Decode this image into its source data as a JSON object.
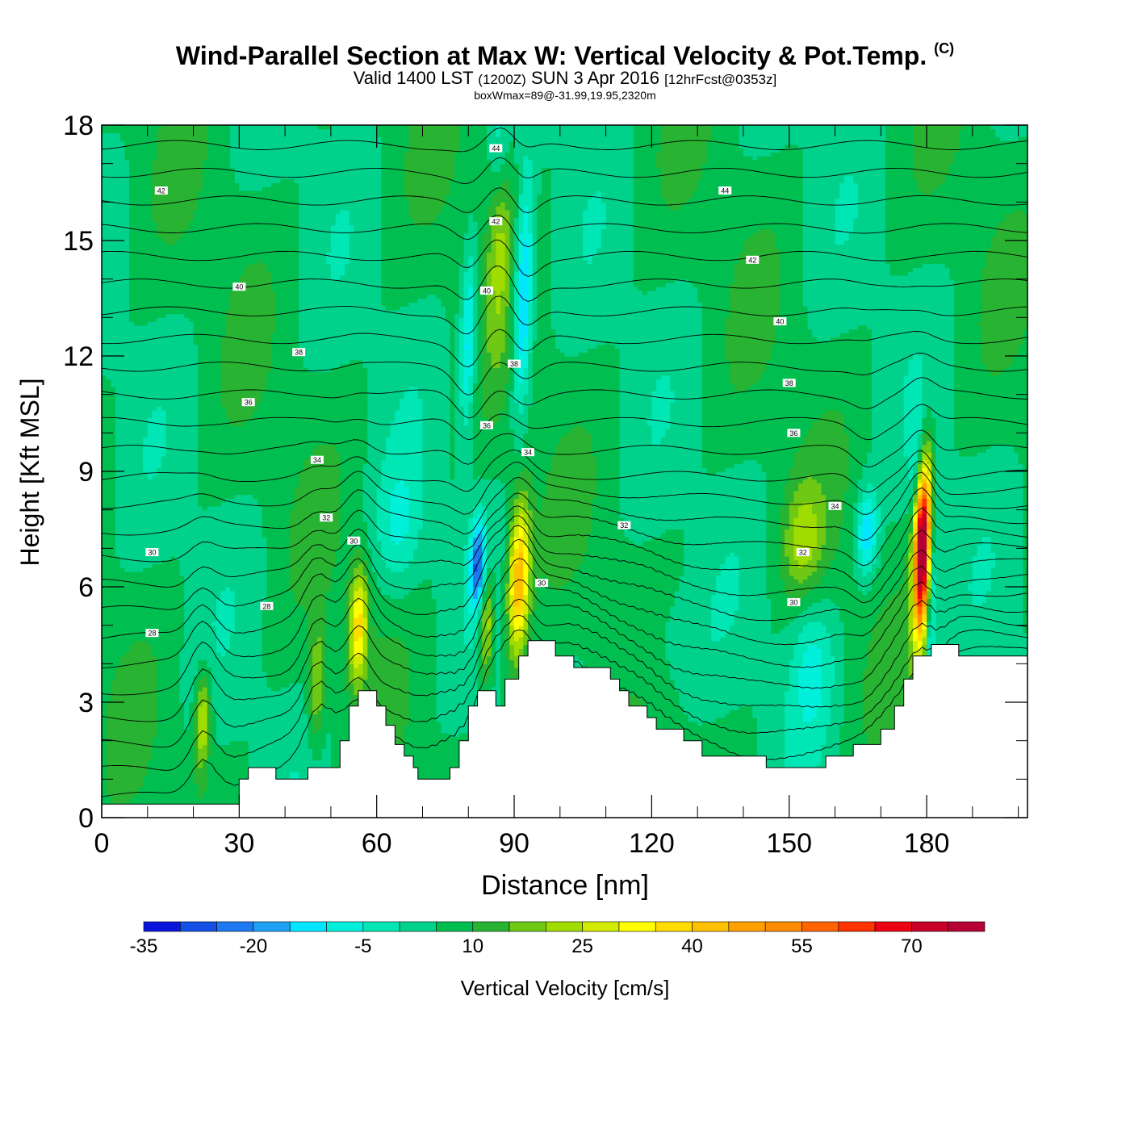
{
  "header": {
    "title": "Wind-Parallel Section at Max W: Vertical Velocity & Pot.Temp.",
    "title_mark": "(C)",
    "subtitle_valid": "Valid 1400 LST",
    "subtitle_z": "(1200Z)",
    "subtitle_date": "SUN 3 Apr 2016",
    "subtitle_fcst": "[12hrFcst@0353z]",
    "note": "boxWmax=89@-31.99,19.95,2320m"
  },
  "chart_data": {
    "type": "heatmap",
    "xlabel": "Distance [nm]",
    "ylabel": "Height [Kft MSL]",
    "xlim": [
      0,
      202
    ],
    "ylim": [
      0,
      18
    ],
    "x_ticks": [
      0,
      30,
      60,
      90,
      120,
      150,
      180
    ],
    "y_ticks": [
      0,
      3,
      6,
      9,
      12,
      15,
      18
    ],
    "colorbar": {
      "label": "Vertical Velocity [cm/s]",
      "min": -35,
      "max": 80,
      "step": 5,
      "tick_labels": [
        -35,
        -20,
        -5,
        10,
        25,
        40,
        55,
        70
      ],
      "colors": [
        "#0a14dc",
        "#1450e6",
        "#1e78f0",
        "#1ea0f5",
        "#00e6ff",
        "#00f0dc",
        "#00e6b4",
        "#00d28c",
        "#00be50",
        "#28b432",
        "#6ec814",
        "#a0dc00",
        "#d2eb00",
        "#ffff00",
        "#ffdc00",
        "#ffc000",
        "#ffa000",
        "#ff8c00",
        "#ff6400",
        "#ff3200",
        "#eb0014",
        "#c80028",
        "#b40032"
      ]
    },
    "terrain": [
      [
        0,
        0.35
      ],
      [
        30,
        0.35
      ],
      [
        30,
        1.0
      ],
      [
        32,
        1.0
      ],
      [
        32,
        1.3
      ],
      [
        38,
        1.3
      ],
      [
        38,
        1.0
      ],
      [
        45,
        1.0
      ],
      [
        45,
        1.3
      ],
      [
        52,
        1.3
      ],
      [
        52,
        2.0
      ],
      [
        54,
        2.0
      ],
      [
        54,
        2.9
      ],
      [
        56,
        2.9
      ],
      [
        56,
        3.3
      ],
      [
        60,
        3.3
      ],
      [
        60,
        2.9
      ],
      [
        62,
        2.9
      ],
      [
        62,
        2.4
      ],
      [
        64,
        2.4
      ],
      [
        64,
        1.9
      ],
      [
        66,
        1.9
      ],
      [
        66,
        1.6
      ],
      [
        68,
        1.6
      ],
      [
        68,
        1.3
      ],
      [
        69,
        1.3
      ],
      [
        69,
        1.0
      ],
      [
        76,
        1.0
      ],
      [
        76,
        1.3
      ],
      [
        78,
        1.3
      ],
      [
        78,
        2.0
      ],
      [
        80,
        2.0
      ],
      [
        80,
        2.9
      ],
      [
        82,
        2.9
      ],
      [
        82,
        3.3
      ],
      [
        86,
        3.3
      ],
      [
        86,
        2.9
      ],
      [
        88,
        2.9
      ],
      [
        88,
        3.6
      ],
      [
        91,
        3.6
      ],
      [
        91,
        4.2
      ],
      [
        93,
        4.2
      ],
      [
        93,
        4.6
      ],
      [
        99,
        4.6
      ],
      [
        99,
        4.2
      ],
      [
        103,
        4.2
      ],
      [
        103,
        3.9
      ],
      [
        111,
        3.9
      ],
      [
        111,
        3.6
      ],
      [
        113,
        3.6
      ],
      [
        113,
        3.3
      ],
      [
        115,
        3.3
      ],
      [
        115,
        2.9
      ],
      [
        119,
        2.9
      ],
      [
        119,
        2.6
      ],
      [
        121,
        2.6
      ],
      [
        121,
        2.3
      ],
      [
        127,
        2.3
      ],
      [
        127,
        2.0
      ],
      [
        131,
        2.0
      ],
      [
        131,
        1.6
      ],
      [
        138,
        1.6
      ],
      [
        138,
        1.6
      ],
      [
        145,
        1.6
      ],
      [
        145,
        1.3
      ],
      [
        158,
        1.3
      ],
      [
        158,
        1.6
      ],
      [
        164,
        1.6
      ],
      [
        164,
        1.9
      ],
      [
        170,
        1.9
      ],
      [
        170,
        2.3
      ],
      [
        173,
        2.3
      ],
      [
        173,
        2.9
      ],
      [
        175,
        2.9
      ],
      [
        175,
        3.6
      ],
      [
        177,
        3.6
      ],
      [
        177,
        4.2
      ],
      [
        181,
        4.2
      ],
      [
        181,
        4.5
      ],
      [
        187,
        4.5
      ],
      [
        187,
        4.2
      ],
      [
        202,
        4.2
      ]
    ],
    "w_features": [
      {
        "x": 91,
        "y": 6.2,
        "sx": 1.6,
        "sy": 1.4,
        "w": 40
      },
      {
        "x": 179,
        "y": 7.0,
        "sx": 1.3,
        "sy": 1.6,
        "w": 80
      },
      {
        "x": 56,
        "y": 5.0,
        "sx": 1.4,
        "sy": 1.0,
        "w": 30
      },
      {
        "x": 84,
        "y": 5.0,
        "sx": 1.1,
        "sy": 1.0,
        "w": 22
      },
      {
        "x": 22,
        "y": 2.5,
        "sx": 1.2,
        "sy": 0.9,
        "w": 22
      },
      {
        "x": 47,
        "y": 3.4,
        "sx": 1.3,
        "sy": 1.1,
        "w": 15
      },
      {
        "x": 87,
        "y": 16.0,
        "sx": 1.8,
        "sy": 2.5,
        "w": 15
      },
      {
        "x": 153,
        "y": 7.2,
        "sx": 3.0,
        "sy": 1.0,
        "w": 14
      },
      {
        "x": 82,
        "y": 6.6,
        "sx": 1.2,
        "sy": 0.8,
        "w": -28
      },
      {
        "x": 80,
        "y": 12.4,
        "sx": 1.2,
        "sy": 1.6,
        "w": -20
      },
      {
        "x": 92,
        "y": 13.5,
        "sx": 1.4,
        "sy": 2.0,
        "w": -26
      },
      {
        "x": 87,
        "y": 17.4,
        "sx": 1.5,
        "sy": 1.2,
        "w": -15
      },
      {
        "x": 167,
        "y": 7.4,
        "sx": 1.6,
        "sy": 0.8,
        "w": -20
      },
      {
        "x": 181,
        "y": 5.5,
        "sx": 0.8,
        "sy": 1.8,
        "w": -18
      },
      {
        "x": 178,
        "y": 9.3,
        "sx": 1.2,
        "sy": 1.0,
        "w": -12
      },
      {
        "x": 65,
        "y": 7.5,
        "sx": 3.5,
        "sy": 1.2,
        "w": -10
      },
      {
        "x": 155,
        "y": 4.0,
        "sx": 3.5,
        "sy": 1.3,
        "w": -11
      },
      {
        "x": 120,
        "y": 4.5,
        "sx": 7.0,
        "sy": 1.2,
        "w": -5
      }
    ],
    "theta_labels": [
      {
        "text": "28",
        "x": 11,
        "y": 4.8
      },
      {
        "text": "28",
        "x": 36,
        "y": 5.5
      },
      {
        "text": "30",
        "x": 11,
        "y": 6.9
      },
      {
        "text": "30",
        "x": 55,
        "y": 7.2
      },
      {
        "text": "30",
        "x": 96,
        "y": 6.1
      },
      {
        "text": "30",
        "x": 151,
        "y": 5.6
      },
      {
        "text": "32",
        "x": 49,
        "y": 7.8
      },
      {
        "text": "32",
        "x": 114,
        "y": 7.6
      },
      {
        "text": "32",
        "x": 153,
        "y": 6.9
      },
      {
        "text": "34",
        "x": 47,
        "y": 9.3
      },
      {
        "text": "34",
        "x": 93,
        "y": 9.5
      },
      {
        "text": "34",
        "x": 160,
        "y": 8.1
      },
      {
        "text": "36",
        "x": 32,
        "y": 10.8
      },
      {
        "text": "36",
        "x": 84,
        "y": 10.2
      },
      {
        "text": "36",
        "x": 151,
        "y": 10.0
      },
      {
        "text": "38",
        "x": 43,
        "y": 12.1
      },
      {
        "text": "38",
        "x": 90,
        "y": 11.8
      },
      {
        "text": "38",
        "x": 150,
        "y": 11.3
      },
      {
        "text": "40",
        "x": 30,
        "y": 13.8
      },
      {
        "text": "40",
        "x": 84,
        "y": 13.7
      },
      {
        "text": "40",
        "x": 148,
        "y": 12.9
      },
      {
        "text": "42",
        "x": 13,
        "y": 16.3
      },
      {
        "text": "42",
        "x": 86,
        "y": 15.5
      },
      {
        "text": "42",
        "x": 142,
        "y": 14.5
      },
      {
        "text": "44",
        "x": 86,
        "y": 17.4
      },
      {
        "text": "44",
        "x": 136,
        "y": 16.3
      }
    ]
  }
}
